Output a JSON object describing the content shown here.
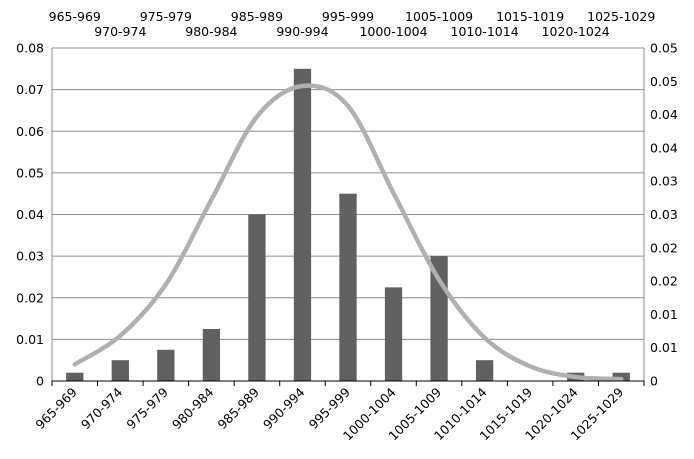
{
  "chart_data": {
    "type": "bar",
    "title": "",
    "xlabel": "",
    "ylabel": "",
    "categories": [
      "965-969",
      "970-974",
      "975-979",
      "980-984",
      "985-989",
      "990-994",
      "995-999",
      "1000-1004",
      "1005-1009",
      "1010-1014",
      "1015-1019",
      "1020-1024",
      "1025-1029"
    ],
    "series": [
      {
        "type": "bar",
        "axis": "left",
        "color": "#616161",
        "values": [
          0.002,
          0.005,
          0.0075,
          0.0125,
          0.04,
          0.075,
          0.045,
          0.0225,
          0.03,
          0.005,
          0.0,
          0.002,
          0.002
        ]
      },
      {
        "type": "line",
        "axis": "right",
        "color": "#b0b0b0",
        "values": [
          0.0025,
          0.0068,
          0.0145,
          0.0272,
          0.0397,
          0.0443,
          0.0413,
          0.0282,
          0.0152,
          0.0065,
          0.0022,
          0.0006,
          0.0003
        ]
      }
    ],
    "y_left": {
      "ylim": [
        0,
        0.08
      ],
      "ticks": [
        0,
        0.01,
        0.02,
        0.03,
        0.04,
        0.05,
        0.06,
        0.07,
        0.08
      ],
      "tick_labels": [
        "0",
        "0.01",
        "0.02",
        "0.03",
        "0.04",
        "0.05",
        "0.06",
        "0.07",
        "0.08"
      ]
    },
    "y_right": {
      "ylim": [
        0,
        0.05
      ],
      "ticks": [
        0,
        0.005,
        0.01,
        0.015,
        0.02,
        0.025,
        0.03,
        0.035,
        0.04,
        0.045,
        0.05
      ],
      "tick_labels": [
        "0",
        "0.01",
        "0.01",
        "0.02",
        "0.02",
        "0.03",
        "0.03",
        "0.04",
        "0.04",
        "0.05",
        "0.05"
      ]
    },
    "grid": true,
    "legend": "none",
    "top_axis_labels": true
  }
}
